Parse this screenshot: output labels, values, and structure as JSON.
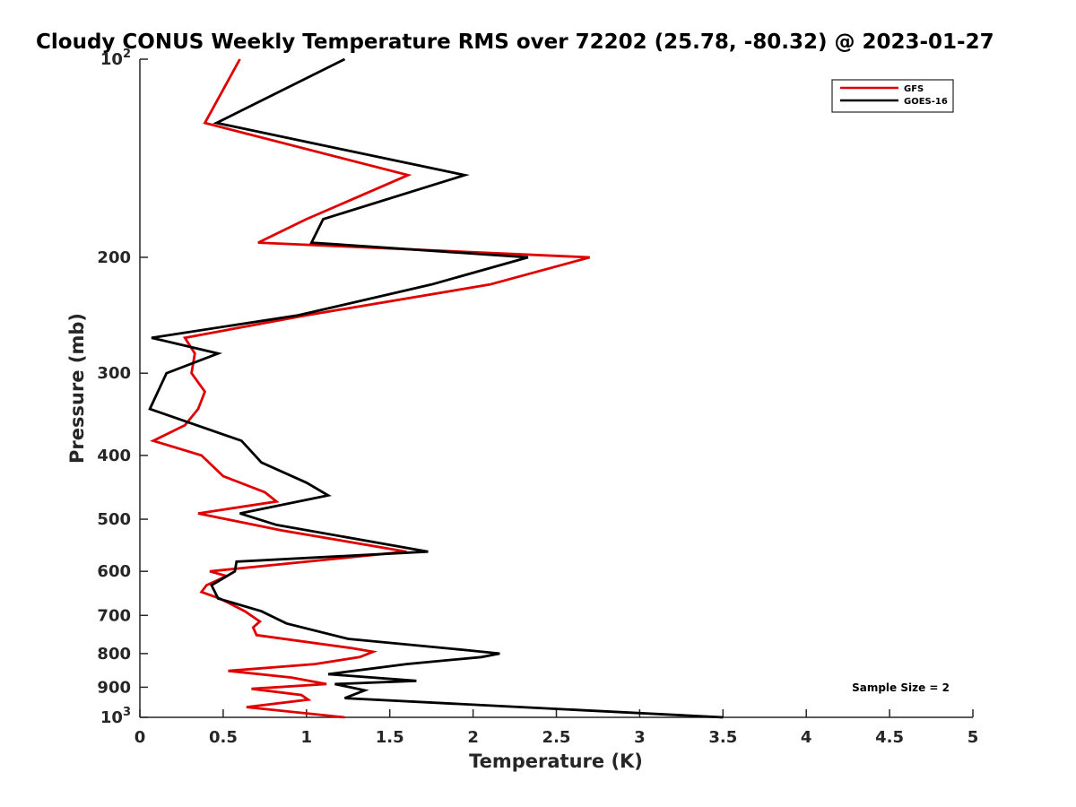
{
  "chart_data": {
    "type": "line",
    "title": "Cloudy CONUS Weekly Temperature RMS over 72202 (25.78, -80.32) @ 2023-01-27",
    "xlabel": "Temperature (K)",
    "ylabel": "Pressure (mb)",
    "xlim": [
      0,
      5
    ],
    "ylim": [
      100,
      1000
    ],
    "yscale": "log",
    "y_reversed": true,
    "xticks": [
      0,
      0.5,
      1,
      1.5,
      2,
      2.5,
      3,
      3.5,
      4,
      4.5,
      5
    ],
    "xtick_labels": [
      "0",
      "0.5",
      "1",
      "1.5",
      "2",
      "2.5",
      "3",
      "3.5",
      "4",
      "4.5",
      "5"
    ],
    "yticks": [
      100,
      200,
      300,
      400,
      500,
      600,
      700,
      800,
      900,
      1000
    ],
    "ytick_labels": [
      {
        "base": "10",
        "exp": "2"
      },
      {
        "base": "200",
        "exp": ""
      },
      {
        "base": "300",
        "exp": ""
      },
      {
        "base": "400",
        "exp": ""
      },
      {
        "base": "500",
        "exp": ""
      },
      {
        "base": "600",
        "exp": ""
      },
      {
        "base": "700",
        "exp": ""
      },
      {
        "base": "800",
        "exp": ""
      },
      {
        "base": "900",
        "exp": ""
      },
      {
        "base": "10",
        "exp": "3"
      }
    ],
    "grid": false,
    "legend_position": "top-right",
    "annotation": "Sample Size = 2",
    "series": [
      {
        "name": "GFS",
        "color": "#e00000",
        "points": [
          [
            0.6,
            100
          ],
          [
            0.39,
            125
          ],
          [
            1.61,
            150
          ],
          [
            1.0,
            175
          ],
          [
            0.71,
            190
          ],
          [
            2.7,
            200
          ],
          [
            2.1,
            220
          ],
          [
            1.0,
            245
          ],
          [
            0.27,
            265
          ],
          [
            0.33,
            280
          ],
          [
            0.31,
            300
          ],
          [
            0.39,
            320
          ],
          [
            0.35,
            340
          ],
          [
            0.27,
            360
          ],
          [
            0.08,
            380
          ],
          [
            0.37,
            400
          ],
          [
            0.5,
            430
          ],
          [
            0.75,
            455
          ],
          [
            0.82,
            470
          ],
          [
            0.35,
            490
          ],
          [
            0.85,
            520
          ],
          [
            1.6,
            560
          ],
          [
            0.42,
            600
          ],
          [
            0.52,
            610
          ],
          [
            0.4,
            630
          ],
          [
            0.37,
            645
          ],
          [
            0.48,
            660
          ],
          [
            0.63,
            690
          ],
          [
            0.72,
            715
          ],
          [
            0.68,
            730
          ],
          [
            0.7,
            750
          ],
          [
            1.27,
            785
          ],
          [
            1.4,
            795
          ],
          [
            1.32,
            810
          ],
          [
            1.05,
            830
          ],
          [
            0.53,
            850
          ],
          [
            0.91,
            870
          ],
          [
            1.12,
            890
          ],
          [
            0.67,
            905
          ],
          [
            0.97,
            925
          ],
          [
            1.01,
            940
          ],
          [
            0.64,
            965
          ],
          [
            1.23,
            1000
          ]
        ]
      },
      {
        "name": "GOES-16",
        "color": "#000000",
        "points": [
          [
            1.23,
            100
          ],
          [
            0.46,
            125
          ],
          [
            1.95,
            150
          ],
          [
            1.1,
            175
          ],
          [
            1.03,
            190
          ],
          [
            2.33,
            200
          ],
          [
            1.75,
            220
          ],
          [
            0.95,
            245
          ],
          [
            0.07,
            265
          ],
          [
            0.47,
            280
          ],
          [
            0.16,
            300
          ],
          [
            0.06,
            340
          ],
          [
            0.61,
            380
          ],
          [
            0.73,
            410
          ],
          [
            1.0,
            440
          ],
          [
            1.13,
            460
          ],
          [
            0.6,
            490
          ],
          [
            0.82,
            510
          ],
          [
            1.73,
            560
          ],
          [
            0.58,
            580
          ],
          [
            0.57,
            600
          ],
          [
            0.43,
            630
          ],
          [
            0.47,
            660
          ],
          [
            0.73,
            690
          ],
          [
            0.88,
            720
          ],
          [
            1.25,
            760
          ],
          [
            1.95,
            790
          ],
          [
            2.16,
            800
          ],
          [
            2.05,
            810
          ],
          [
            1.6,
            830
          ],
          [
            1.13,
            860
          ],
          [
            1.66,
            880
          ],
          [
            1.17,
            890
          ],
          [
            1.35,
            910
          ],
          [
            1.23,
            935
          ],
          [
            3.5,
            1000
          ]
        ]
      }
    ]
  }
}
